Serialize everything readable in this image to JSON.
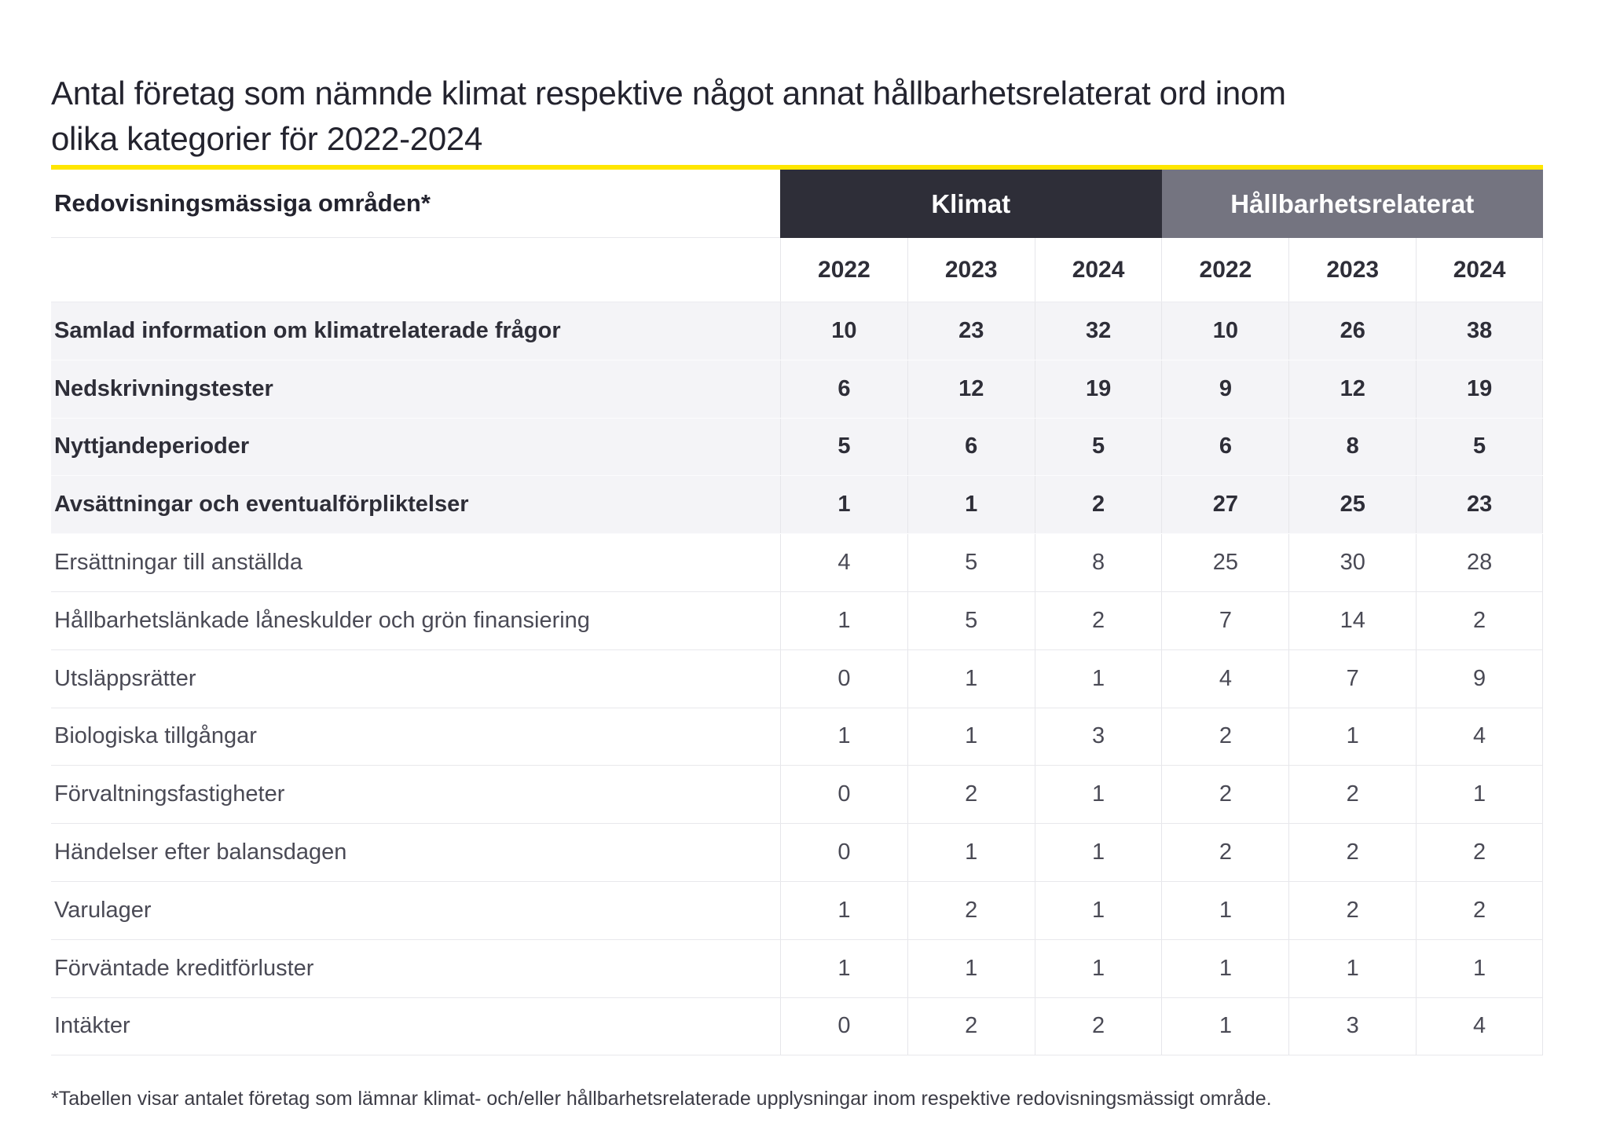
{
  "chart_data": {
    "type": "table",
    "title": "Antal företag som nämnde klimat respektive något annat hållbarhetsrelaterat ord inom olika kategorier för 2022-2024",
    "title_lines": [
      "Antal företag som nämnde klimat respektive något annat hållbarhetsrelaterat ord inom",
      "olika kategorier för 2022-2024"
    ],
    "row_header": "Redovisningsmässiga områden*",
    "groups": [
      {
        "label": "Klimat"
      },
      {
        "label": "Hållbarhetsrelaterat"
      }
    ],
    "years": [
      "2022",
      "2023",
      "2024",
      "2022",
      "2023",
      "2024"
    ],
    "rows": [
      {
        "label": "Samlad information om klimatrelaterade frågor",
        "emphasis": true,
        "values": [
          10,
          23,
          32,
          10,
          26,
          38
        ]
      },
      {
        "label": "Nedskrivningstester",
        "emphasis": true,
        "values": [
          6,
          12,
          19,
          9,
          12,
          19
        ]
      },
      {
        "label": "Nyttjandeperioder",
        "emphasis": true,
        "values": [
          5,
          6,
          5,
          6,
          8,
          5
        ]
      },
      {
        "label": "Avsättningar och eventualförpliktelser",
        "emphasis": true,
        "values": [
          1,
          1,
          2,
          27,
          25,
          23
        ]
      },
      {
        "label": "Ersättningar till anställda",
        "emphasis": false,
        "values": [
          4,
          5,
          8,
          25,
          30,
          28
        ]
      },
      {
        "label": "Hållbarhetslänkade låneskulder och grön finansiering",
        "emphasis": false,
        "values": [
          1,
          5,
          2,
          7,
          14,
          2
        ]
      },
      {
        "label": "Utsläppsrätter",
        "emphasis": false,
        "values": [
          0,
          1,
          1,
          4,
          7,
          9
        ]
      },
      {
        "label": "Biologiska tillgångar",
        "emphasis": false,
        "values": [
          1,
          1,
          3,
          2,
          1,
          4
        ]
      },
      {
        "label": "Förvaltningsfastigheter",
        "emphasis": false,
        "values": [
          0,
          2,
          1,
          2,
          2,
          1
        ]
      },
      {
        "label": "Händelser efter balansdagen",
        "emphasis": false,
        "values": [
          0,
          1,
          1,
          2,
          2,
          2
        ]
      },
      {
        "label": "Varulager",
        "emphasis": false,
        "values": [
          1,
          2,
          1,
          1,
          2,
          2
        ]
      },
      {
        "label": "Förväntade kreditförluster",
        "emphasis": false,
        "values": [
          1,
          1,
          1,
          1,
          1,
          1
        ]
      },
      {
        "label": "Intäkter",
        "emphasis": false,
        "values": [
          0,
          2,
          2,
          1,
          3,
          4
        ]
      }
    ],
    "footnote": "*Tabellen visar antalet företag som lämnar klimat- och/eller hållbarhetsrelaterade upplysningar inom respektive redovisningsmässigt område."
  },
  "colors": {
    "accent_yellow": "#ffe600",
    "climate_header_bg": "#2e2e38",
    "sustainability_header_bg": "#747480",
    "emphasis_row_bg": "#f4f4f7",
    "text_dark": "#2e2e38"
  }
}
